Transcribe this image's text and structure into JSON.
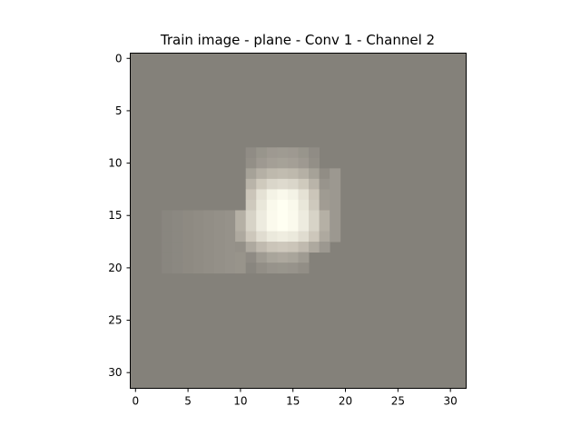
{
  "chart_data": {
    "type": "heatmap",
    "title": "Train image - plane - Conv 1 - Channel 2",
    "xlabel": "",
    "ylabel": "",
    "grid": false,
    "legend": "none",
    "xlim": [
      -0.5,
      31.5
    ],
    "ylim": [
      31.5,
      -0.5
    ],
    "xticks": [
      0,
      5,
      10,
      15,
      20,
      25,
      30
    ],
    "yticks": [
      0,
      5,
      10,
      15,
      20,
      25,
      30
    ],
    "colors": {
      "background": "#84817a",
      "hot": "#fffff2",
      "mid": "#c8c2b6"
    },
    "bright_region": {
      "rows": [
        9,
        21
      ],
      "cols": [
        3,
        19
      ],
      "note_cells": [
        {
          "row": 9,
          "cols": [
            11,
            17
          ],
          "level": 0.2
        },
        {
          "row": 10,
          "cols": [
            11,
            17
          ],
          "level": 0.25
        },
        {
          "row": 11,
          "cols": [
            11,
            18
          ],
          "level": 0.45
        },
        {
          "row": 12,
          "cols": [
            11,
            18
          ],
          "level": 0.7
        },
        {
          "row": 13,
          "cols": [
            11,
            18
          ],
          "level": 0.95
        },
        {
          "row": 14,
          "cols": [
            11,
            18
          ],
          "level": 1.0
        },
        {
          "row": 15,
          "cols": [
            10,
            18
          ],
          "level": 1.0
        },
        {
          "row": 16,
          "cols": [
            10,
            18
          ],
          "level": 1.0
        },
        {
          "row": 17,
          "cols": [
            10,
            18
          ],
          "level": 0.85
        },
        {
          "row": 18,
          "cols": [
            10,
            17
          ],
          "level": 0.55
        },
        {
          "row": 19,
          "cols": [
            11,
            16
          ],
          "level": 0.3
        },
        {
          "row": 20,
          "cols": [
            11,
            16
          ],
          "level": 0.15
        }
      ]
    }
  }
}
